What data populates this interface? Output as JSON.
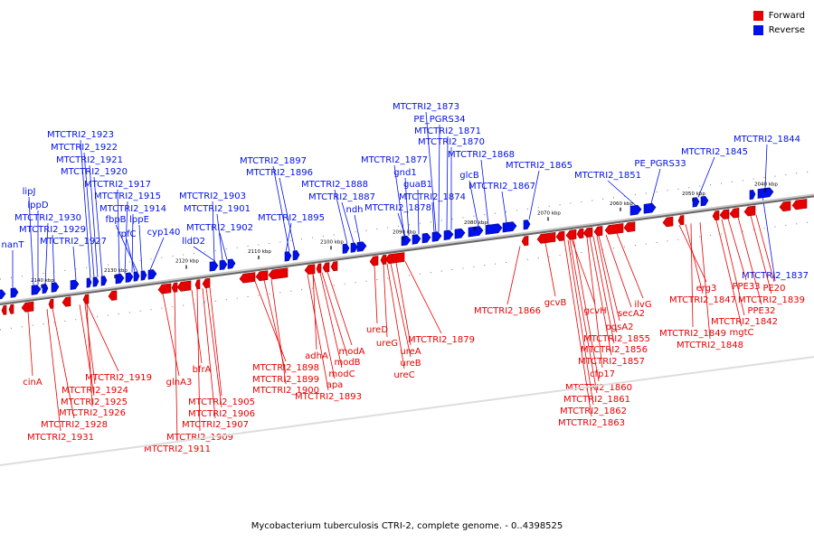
{
  "legend": {
    "forward_label": "Forward",
    "reverse_label": "Reverse",
    "forward_color": "#e60000",
    "reverse_color": "#0010e8"
  },
  "caption": "Mycobacterium tuberculosis CTRI-2, complete genome. - 0..4398525",
  "ticks": [
    "2140 kbp",
    "2130 kbp",
    "2120 kbp",
    "2110 kbp",
    "2100 kbp",
    "2090 kbp",
    "2080 kbp",
    "2070 kbp",
    "2060 kbp",
    "2050 kbp",
    "2040 kbp"
  ],
  "reverse_labels": [
    "nanT",
    "lipJ",
    "lppD",
    "MTCTRI2_1930",
    "MTCTRI2_1929",
    "MTCTRI2_1927",
    "MTCTRI2_1923",
    "MTCTRI2_1922",
    "MTCTRI2_1921",
    "MTCTRI2_1920",
    "MTCTRI2_1917",
    "MTCTRI2_1915",
    "MTCTRI2_1914",
    "fbpB",
    "lppE",
    "rpfC",
    "cyp140",
    "MTCTRI2_1903",
    "MTCTRI2_1901",
    "MTCTRI2_1902",
    "lldD2",
    "MTCTRI2_1897",
    "MTCTRI2_1896",
    "MTCTRI2_1895",
    "MTCTRI2_1888",
    "MTCTRI2_1887",
    "ndh",
    "MTCTRI2_1877",
    "gnd1",
    "guaB1",
    "MTCTRI2_1878",
    "MTCTRI2_1874",
    "MTCTRI2_1873",
    "PE_PGRS34",
    "MTCTRI2_1871",
    "MTCTRI2_1870",
    "MTCTRI2_1868",
    "glcB",
    "MTCTRI2_1867",
    "MTCTRI2_1865",
    "MTCTRI2_1851",
    "PE_PGRS33",
    "MTCTRI2_1845",
    "MTCTRI2_1844",
    "MTCTRI2_1837"
  ],
  "forward_labels": [
    "cinA",
    "MTCTRI2_1919",
    "MTCTRI2_1924",
    "MTCTRI2_1925",
    "MTCTRI2_1926",
    "MTCTRI2_1928",
    "MTCTRI2_1931",
    "glnA3",
    "bfrA",
    "MTCTRI2_1905",
    "MTCTRI2_1906",
    "MTCTRI2_1907",
    "MTCTRI2_1909",
    "MTCTRI2_1911",
    "MTCTRI2_1898",
    "MTCTRI2_1899",
    "MTCTRI2_1900",
    "adhA",
    "modA",
    "modB",
    "modC",
    "apa",
    "MTCTRI2_1893",
    "ureD",
    "ureG",
    "ureA",
    "ureB",
    "ureC",
    "MTCTRI2_1879",
    "MTCTRI2_1866",
    "gcvB",
    "gcvH",
    "secA2",
    "ilvG",
    "pgsA2",
    "MTCTRI2_1855",
    "MTCTRI2_1856",
    "MTCTRI2_1857",
    "cfp17",
    "MTCTRI2_1860",
    "MTCTRI2_1861",
    "MTCTRI2_1862",
    "MTCTRI2_1863",
    "erg3",
    "MTCTRI2_1847",
    "PPE33",
    "PE20",
    "MTCTRI2_1839",
    "PPE32",
    "MTCTRI2_1842",
    "mgtC",
    "MTCTRI2_1849",
    "MTCTRI2_1848"
  ]
}
